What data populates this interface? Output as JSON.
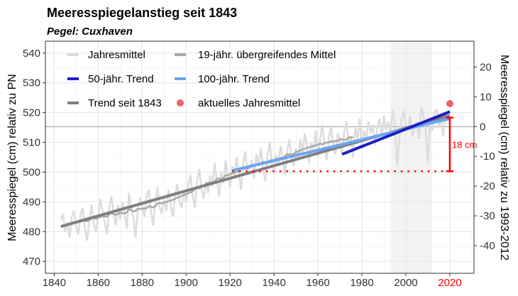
{
  "title": "Meeresspiegelanstieg seit 1843",
  "subtitle": "Pegel: Cuxhaven",
  "chart_data": {
    "type": "line",
    "title": "Meeresspiegelanstieg seit 1843",
    "subtitle": "Pegel: Cuxhaven",
    "xlabel": "",
    "ylabel": "Meeresspiegel (cm) relativ zu PN",
    "ylabel_right": "Meeresspiegel (cm) relativ zu 1993-2012",
    "xlim": [
      1836,
      2031
    ],
    "ylim": [
      466,
      544
    ],
    "xticks": [
      1840,
      1860,
      1880,
      1900,
      1920,
      1940,
      1960,
      1980,
      2000,
      2020
    ],
    "xtick_highlight": 2020,
    "xtick_highlight_color": "#ff0000",
    "yticks": [
      470,
      480,
      490,
      500,
      510,
      520,
      530,
      540
    ],
    "yticks_right": [
      20,
      10,
      0,
      -10,
      -20,
      -30,
      -40
    ],
    "right_axis_offset": 515.3,
    "reference_period": [
      1993,
      2012
    ],
    "grid": true,
    "legend_placement": "top-left",
    "legend": [
      {
        "label": "Jahresmittel",
        "color": "#dcdcdc",
        "kind": "line"
      },
      {
        "label": "19-jähr. übergreifendes Mittel",
        "color": "#a8a8a8",
        "kind": "line"
      },
      {
        "label": "50-jähr. Trend",
        "color": "#1c1cc4",
        "kind": "line"
      },
      {
        "label": "100-jähr. Trend",
        "color": "#6aa6f2",
        "kind": "line"
      },
      {
        "label": "Trend seit 1843",
        "color": "#7f7f7f",
        "kind": "line"
      },
      {
        "label": "aktuelles Jahresmittel",
        "color": "#f06464",
        "kind": "point"
      }
    ],
    "annual": {
      "start_year": 1843,
      "values": [
        484,
        486,
        480,
        483,
        478,
        485,
        487,
        482,
        479,
        486,
        488,
        481,
        477,
        484,
        489,
        483,
        480,
        485,
        491,
        487,
        483,
        479,
        488,
        492,
        486,
        482,
        489,
        484,
        490,
        486,
        481,
        493,
        488,
        485,
        478,
        487,
        491,
        489,
        485,
        492,
        494,
        487,
        482,
        490,
        495,
        488,
        486,
        491,
        487,
        494,
        489,
        485,
        492,
        496,
        490,
        488,
        494,
        490,
        496,
        499,
        492,
        488,
        497,
        501,
        494,
        491,
        497,
        493,
        499,
        495,
        503,
        497,
        492,
        500,
        496,
        504,
        498,
        495,
        502,
        498,
        505,
        500,
        494,
        503,
        507,
        499,
        501,
        504,
        498,
        506,
        502,
        508,
        501,
        497,
        505,
        510,
        503,
        500,
        506,
        502,
        509,
        505,
        499,
        507,
        511,
        504,
        502,
        508,
        504,
        511,
        506,
        513,
        509,
        503,
        510,
        507,
        514,
        505,
        511,
        516,
        509,
        504,
        512,
        515,
        508,
        506,
        513,
        510,
        506,
        514,
        517,
        509,
        512,
        505,
        515,
        511,
        518,
        508,
        514,
        511,
        517,
        513,
        516,
        509,
        515,
        518,
        512,
        519,
        514,
        517,
        513,
        521,
        516,
        502,
        511,
        518,
        520,
        516,
        514,
        519,
        512,
        515,
        517,
        511,
        522,
        519,
        514,
        503,
        516,
        514,
        520,
        521,
        515,
        518,
        512,
        520,
        517
      ]
    },
    "running_mean_window": 19,
    "running_mean_end_year": 1976,
    "trend_1843": {
      "x": [
        1843,
        2020
      ],
      "y": [
        481.7,
        519.0
      ]
    },
    "trend_50": {
      "x": [
        1971,
        2020
      ],
      "y": [
        506.0,
        520.3
      ]
    },
    "trend_100": {
      "x": [
        1921,
        2020
      ],
      "y": [
        500.5,
        518.0
      ]
    },
    "current": {
      "year": 2020,
      "value": 523.0
    },
    "rise_annotation": {
      "label": "18 cm",
      "year": 2020,
      "from": 500.3,
      "to": 518.3,
      "baseline_start": 1921,
      "color": "#ff0000"
    }
  }
}
